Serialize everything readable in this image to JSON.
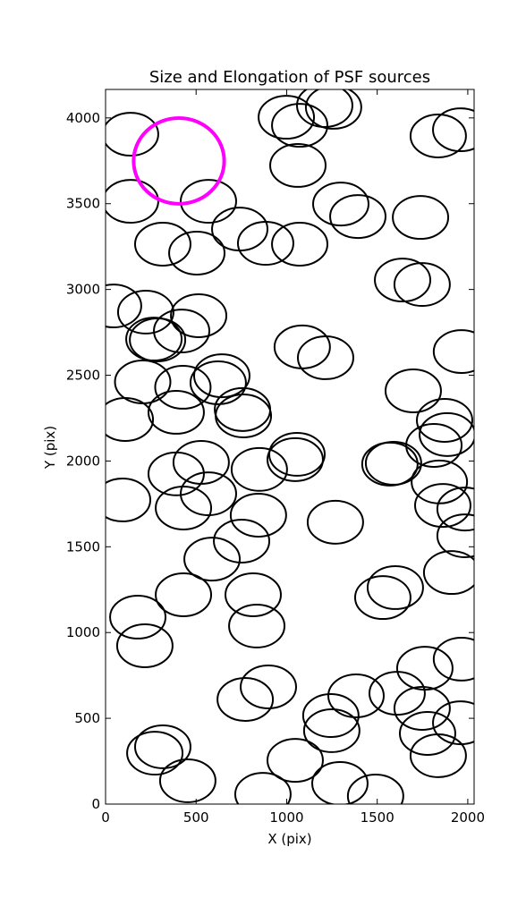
{
  "chart_data": {
    "type": "ellipses",
    "title": "Size and Elongation of PSF sources",
    "x_label": "X (pix)",
    "y_label": "Y (pix)",
    "xlim": [
      0,
      2035
    ],
    "ylim": [
      0,
      4166
    ],
    "xticks": [
      0,
      500,
      1000,
      1500,
      2000
    ],
    "yticks": [
      0,
      500,
      1000,
      1500,
      2000,
      2500,
      3000,
      3500,
      4000
    ],
    "sources": {
      "color": "#000000",
      "width": 306,
      "height": 250,
      "x": [
        138,
        138,
        568,
        316,
        504,
        741,
        884,
        1072,
        998,
        1072,
        1210,
        1259,
        1062,
        1299,
        1393,
        1739,
        1837,
        1961,
        1640,
        1748,
        44,
        222,
        514,
        420,
        287,
        267,
        1086,
        1215,
        1965,
        205,
        427,
        390,
        642,
        622,
        756,
        761,
        109,
        1699,
        1872,
        1887,
        1813,
        1057,
        1047,
        849,
        528,
        390,
        568,
        430,
        94,
        1570,
        1590,
        1843,
        1862,
        1985,
        1985,
        1269,
        844,
        751,
        588,
        815,
        835,
        430,
        178,
        217,
        1600,
        1531,
        1911,
        1965,
        1763,
        1610,
        1383,
        1748,
        1244,
        1249,
        1778,
        1837,
        1961,
        899,
        771,
        316,
        272,
        454,
        1047,
        1294,
        869,
        1491
      ],
      "y": [
        3905,
        3514,
        3514,
        3264,
        3212,
        3352,
        3269,
        3264,
        4004,
        3957,
        4072,
        4062,
        3723,
        3498,
        3425,
        3420,
        3895,
        3931,
        3055,
        3029,
        2904,
        2868,
        2847,
        2758,
        2706,
        2711,
        2665,
        2602,
        2638,
        2461,
        2430,
        2284,
        2497,
        2456,
        2300,
        2263,
        2242,
        2409,
        2237,
        2154,
        2091,
        2039,
        2008,
        1951,
        1992,
        1925,
        1809,
        1726,
        1773,
        1982,
        1987,
        1878,
        1741,
        1720,
        1564,
        1643,
        1684,
        1533,
        1428,
        1220,
        1038,
        1220,
        1090,
        923,
        1262,
        1204,
        1350,
        845,
        792,
        646,
        631,
        558,
        516,
        428,
        412,
        282,
        474,
        683,
        610,
        334,
        297,
        136,
        255,
        120,
        57,
        47
      ]
    },
    "highlight": {
      "color": "#ff00ff",
      "x": 405,
      "y": 3749,
      "width": 500,
      "height": 500
    }
  }
}
